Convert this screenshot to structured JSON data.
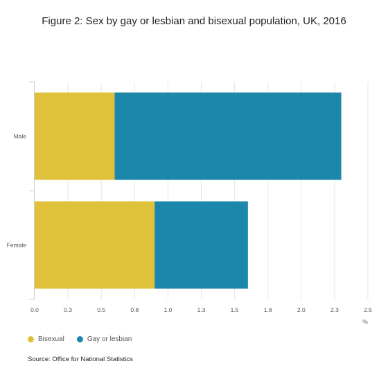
{
  "title": "Figure 2: Sex by gay or lesbian and bisexual population, UK, 2016",
  "source": "Source: Office for National Statistics",
  "chart_data": {
    "type": "bar",
    "orientation": "horizontal",
    "stacked": true,
    "categories": [
      "Male",
      "Female"
    ],
    "series": [
      {
        "name": "Bisexual",
        "values": [
          0.6,
          0.9
        ],
        "color": "#e0c23a"
      },
      {
        "name": "Gay or lesbian",
        "values": [
          1.7,
          0.7
        ],
        "color": "#1b87ab"
      }
    ],
    "xlim": [
      0,
      2.5
    ],
    "x_ticks": [
      "0.0",
      "0.3",
      "0.5",
      "0.8",
      "1.0",
      "1.3",
      "1.5",
      "1.8",
      "2.0",
      "2.3",
      "2.5"
    ],
    "x_tick_values": [
      0,
      0.25,
      0.5,
      0.75,
      1.0,
      1.25,
      1.5,
      1.75,
      2.0,
      2.25,
      2.5
    ],
    "xlabel": "%",
    "grid": true,
    "legend_position": "bottom-left"
  }
}
